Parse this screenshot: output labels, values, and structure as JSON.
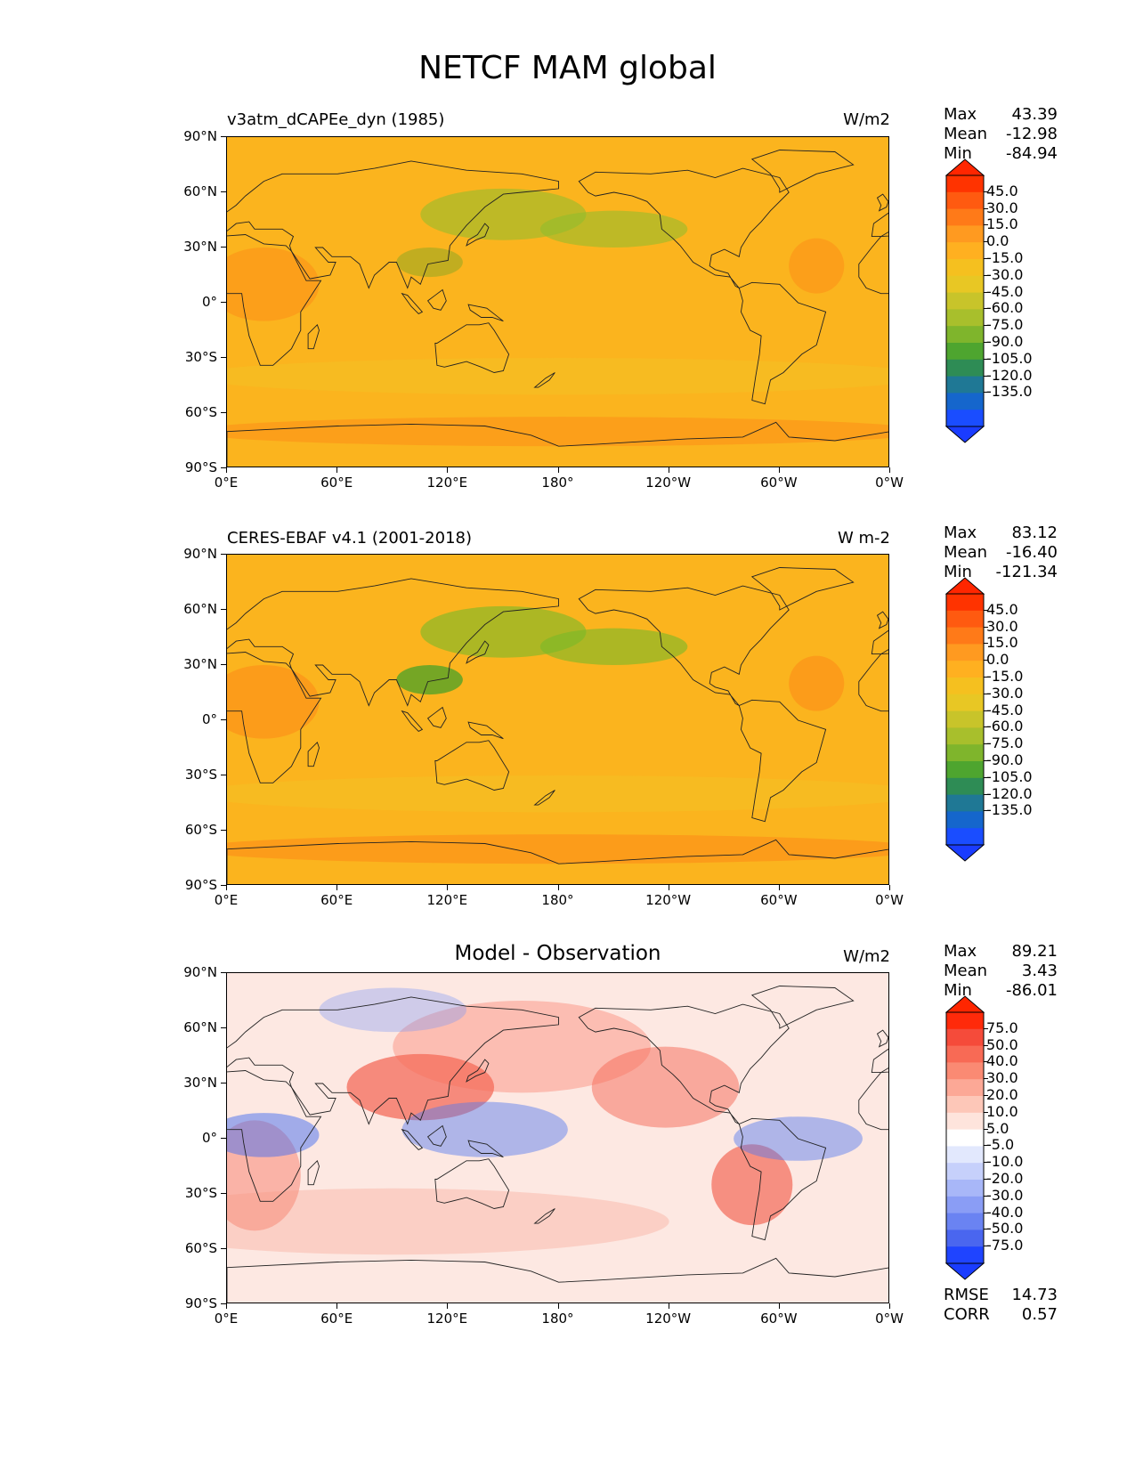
{
  "figure_title": "NETCF MAM global",
  "axes": {
    "lat_ticks": [
      "90°N",
      "60°N",
      "30°N",
      "0°",
      "30°S",
      "60°S",
      "90°S"
    ],
    "lon_ticks": [
      "0°E",
      "60°E",
      "120°E",
      "180°",
      "120°W",
      "60°W",
      "0°W"
    ]
  },
  "panels": [
    {
      "id": "model",
      "title_left": "v3atm_dCAPEe_dyn (1985)",
      "title_center": "",
      "units": "W/m2",
      "stats": {
        "max_label": "Max",
        "max": "43.39",
        "mean_label": "Mean",
        "mean": "-12.98",
        "min_label": "Min",
        "min": "-84.94"
      },
      "colorbar": {
        "labels": [
          "45.0",
          "30.0",
          "15.0",
          "0.0",
          "-15.0",
          "-30.0",
          "-45.0",
          "-60.0",
          "-75.0",
          "-90.0",
          "-105.0",
          "-120.0",
          "-135.0"
        ],
        "colors": [
          "#ff3300",
          "#ff5a10",
          "#ff7a18",
          "#ff9a20",
          "#ffb020",
          "#f5c01f",
          "#e8c724",
          "#c8c42a",
          "#a8bf2c",
          "#7fb52c",
          "#4ea52f",
          "#2e8c55",
          "#1f7895",
          "#1566cc",
          "#1a4dff"
        ],
        "max_arrow_color": "#ff2600",
        "min_arrow_color": "#1a3cff"
      },
      "field_color": "#fbb41e"
    },
    {
      "id": "obs",
      "title_left": "CERES-EBAF v4.1 (2001-2018)",
      "title_center": "",
      "units": "W m-2",
      "stats": {
        "max_label": "Max",
        "max": "83.12",
        "mean_label": "Mean",
        "mean": "-16.40",
        "min_label": "Min",
        "min": "-121.34"
      },
      "colorbar": {
        "labels": [
          "45.0",
          "30.0",
          "15.0",
          "0.0",
          "-15.0",
          "-30.0",
          "-45.0",
          "-60.0",
          "-75.0",
          "-90.0",
          "-105.0",
          "-120.0",
          "-135.0"
        ],
        "colors": [
          "#ff3300",
          "#ff5a10",
          "#ff7a18",
          "#ff9a20",
          "#ffb020",
          "#f5c01f",
          "#e8c724",
          "#c8c42a",
          "#a8bf2c",
          "#7fb52c",
          "#4ea52f",
          "#2e8c55",
          "#1f7895",
          "#1566cc",
          "#1a4dff"
        ],
        "max_arrow_color": "#ff2600",
        "min_arrow_color": "#1a3cff"
      },
      "field_color": "#fbb41e"
    },
    {
      "id": "diff",
      "title_left": "",
      "title_center": "Model - Observation",
      "units": "W/m2",
      "stats": {
        "max_label": "Max",
        "max": "89.21",
        "mean_label": "Mean",
        "mean": "3.43",
        "min_label": "Min",
        "min": "-86.01"
      },
      "metrics": {
        "rmse_label": "RMSE",
        "rmse": "14.73",
        "corr_label": "CORR",
        "corr": "0.57"
      },
      "colorbar": {
        "labels": [
          "75.0",
          "50.0",
          "40.0",
          "30.0",
          "20.0",
          "10.0",
          "5.0",
          "-5.0",
          "-10.0",
          "-20.0",
          "-30.0",
          "-40.0",
          "-50.0",
          "-75.0"
        ],
        "colors": [
          "#ff2a0a",
          "#f54b3a",
          "#f86a55",
          "#fa8a73",
          "#fca896",
          "#fdc7b8",
          "#fee4dc",
          "#ffffff",
          "#e2e8fd",
          "#c6d0fb",
          "#a8b7f8",
          "#8a9df5",
          "#6a83f2",
          "#4a66ef",
          "#1f44ff"
        ],
        "max_arrow_color": "#ff2600",
        "min_arrow_color": "#1a3cff"
      },
      "field_color": "#fde8e2"
    }
  ]
}
